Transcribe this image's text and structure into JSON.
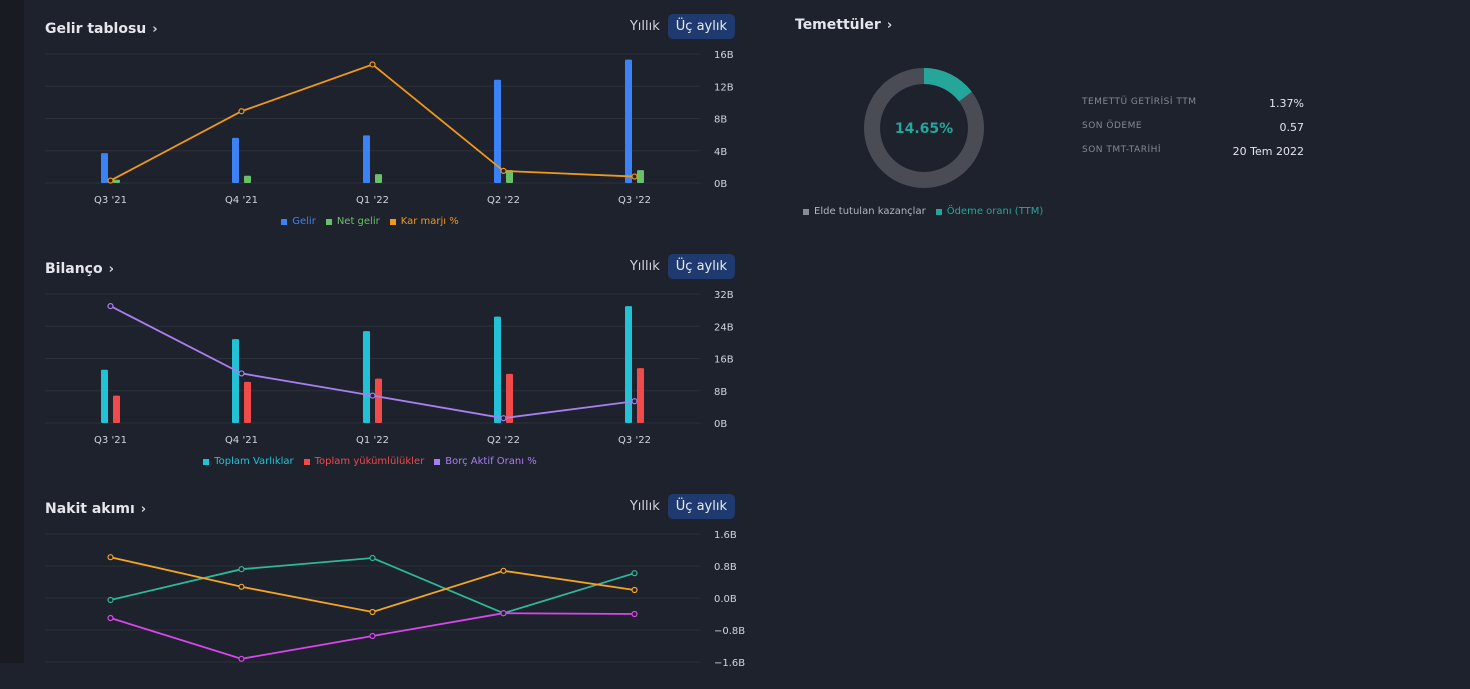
{
  "income": {
    "title": "Gelir tablosu",
    "toggle": {
      "annual": "Yıllık",
      "quarterly": "Üç aylık"
    },
    "legend": {
      "revenue": "Gelir",
      "net": "Net gelir",
      "margin": "Kar marjı %"
    },
    "colors": {
      "revenue": "#3b82f6",
      "net": "#6abf69",
      "margin": "#f0981b"
    }
  },
  "balance": {
    "title": "Bilanço",
    "toggle": {
      "annual": "Yıllık",
      "quarterly": "Üç aylık"
    },
    "legend": {
      "assets": "Toplam Varlıklar",
      "liabilities": "Toplam yükümlülükler",
      "ratio": "Borç Aktif Oranı %"
    },
    "colors": {
      "assets": "#22c1d6",
      "liabilities": "#f04a4a",
      "ratio": "#a77ff0"
    }
  },
  "cashflow": {
    "title": "Nakit akımı",
    "toggle": {
      "annual": "Yıllık",
      "quarterly": "Üç aylık"
    },
    "colors": {
      "s1": "#2eb89a",
      "s2": "#f5a524",
      "s3": "#d946ef"
    }
  },
  "dividends": {
    "title": "Temettüler",
    "donut_label": "14.65%",
    "payout_percent": 14.65,
    "rows": [
      {
        "key": "TEMETTÜ GETİRİSİ TTM",
        "value": "1.37%"
      },
      {
        "key": "SON ÖDEME",
        "value": "0.57"
      },
      {
        "key": "SON TMT-TARİHİ",
        "value": "20 Tem 2022"
      }
    ],
    "legend": {
      "retained": "Elde tutulan kazançlar",
      "payout": "Ödeme oranı (TTM)"
    },
    "colors": {
      "retained": "#4a4c55",
      "payout": "#26a69a"
    }
  },
  "chart_data": [
    {
      "type": "bar",
      "title": "Gelir tablosu",
      "categories": [
        "Q3 '21",
        "Q4 '21",
        "Q1 '22",
        "Q2 '22",
        "Q3 '22"
      ],
      "y_ticks": [
        "16B",
        "12B",
        "8B",
        "4B",
        "0B"
      ],
      "ylim": [
        0,
        16
      ],
      "series": [
        {
          "name": "Gelir",
          "type": "bar",
          "values": [
            3.7,
            5.6,
            5.9,
            12.8,
            15.3
          ]
        },
        {
          "name": "Net gelir",
          "type": "bar",
          "values": [
            0.4,
            0.9,
            1.1,
            1.6,
            1.6
          ]
        },
        {
          "name": "Kar marjı %",
          "type": "line",
          "values": [
            0.3,
            8.9,
            14.7,
            1.5,
            0.8
          ]
        }
      ]
    },
    {
      "type": "bar",
      "title": "Bilanço",
      "categories": [
        "Q3 '21",
        "Q4 '21",
        "Q1 '22",
        "Q2 '22",
        "Q3 '22"
      ],
      "y_ticks": [
        "32B",
        "24B",
        "16B",
        "8B",
        "0B"
      ],
      "ylim": [
        0,
        32
      ],
      "series": [
        {
          "name": "Toplam Varlıklar",
          "type": "bar",
          "values": [
            13.2,
            20.8,
            22.8,
            26.4,
            29.0
          ]
        },
        {
          "name": "Toplam yükümlülükler",
          "type": "bar",
          "values": [
            6.8,
            10.2,
            11.0,
            12.2,
            13.6
          ]
        },
        {
          "name": "Borç Aktif Oranı %",
          "type": "line",
          "values": [
            29.0,
            12.3,
            6.8,
            1.2,
            5.4
          ]
        }
      ]
    },
    {
      "type": "line",
      "title": "Nakit akımı",
      "categories": [
        "Q3 '21",
        "Q4 '21",
        "Q1 '22",
        "Q2 '22",
        "Q3 '22"
      ],
      "y_ticks": [
        "1.6B",
        "0.8B",
        "0.0B",
        "−0.8B",
        "−1.6B"
      ],
      "ylim": [
        -1.6,
        1.6
      ],
      "series": [
        {
          "name": "s1",
          "values": [
            -0.05,
            0.72,
            1.0,
            -0.38,
            0.62
          ]
        },
        {
          "name": "s2",
          "values": [
            1.02,
            0.28,
            -0.35,
            0.68,
            0.2
          ]
        },
        {
          "name": "s3",
          "values": [
            -0.5,
            -1.52,
            -0.95,
            -0.38,
            -0.4
          ]
        }
      ]
    }
  ]
}
